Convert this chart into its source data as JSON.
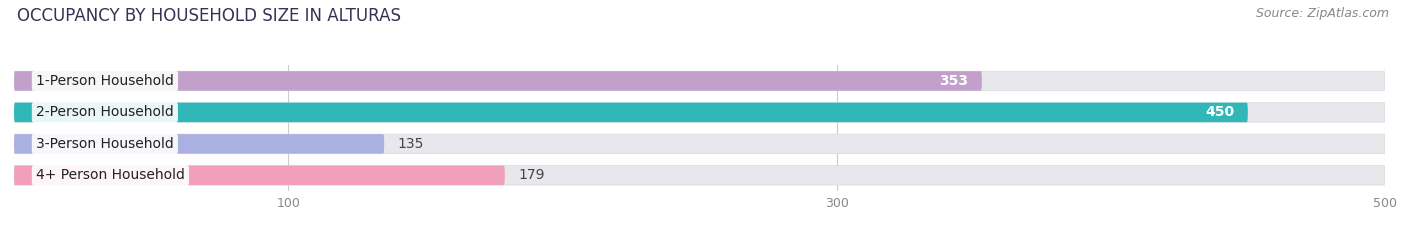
{
  "title": "OCCUPANCY BY HOUSEHOLD SIZE IN ALTURAS",
  "source": "Source: ZipAtlas.com",
  "categories": [
    "1-Person Household",
    "2-Person Household",
    "3-Person Household",
    "4+ Person Household"
  ],
  "values": [
    353,
    450,
    135,
    179
  ],
  "bar_colors": [
    "#c3a0cc",
    "#30b8b8",
    "#aab0e0",
    "#f0a0b8"
  ],
  "label_colors": [
    "white",
    "white",
    "#444444",
    "#444444"
  ],
  "bar_height": 0.62,
  "data_max": 500,
  "xlim": [
    0,
    500
  ],
  "xticks": [
    100,
    300,
    500
  ],
  "background_color": "#ffffff",
  "bar_bg_color": "#e8e8ec",
  "bar_bg_border": "#d8d8de",
  "title_fontsize": 12,
  "label_fontsize": 10,
  "value_fontsize": 10,
  "source_fontsize": 9,
  "title_color": "#333355",
  "tick_color": "#888888"
}
